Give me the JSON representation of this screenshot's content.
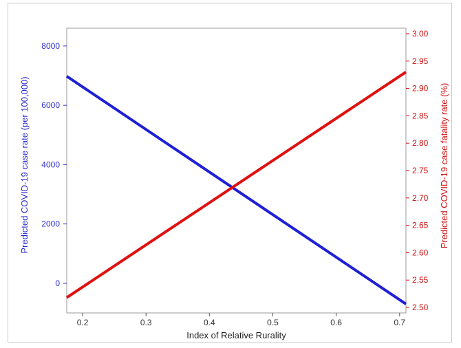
{
  "chart_data": {
    "type": "line",
    "xlabel": "Index of Relative Rurality",
    "ylabel_left": "Predicted COVID-19 case rate (per 100,000)",
    "ylabel_right": "Predicted COVID-19 case fatality rate (%)",
    "xlim": [
      0.175,
      0.71
    ],
    "ylim_left": [
      -1000,
      8600
    ],
    "ylim_right": [
      2.49,
      3.01
    ],
    "x_ticks": [
      0.2,
      0.3,
      0.4,
      0.5,
      0.6,
      0.7
    ],
    "x_tick_labels": [
      "0.2",
      "0.3",
      "0.4",
      "0.5",
      "0.6",
      "0.7"
    ],
    "y_left_ticks": [
      0,
      2000,
      4000,
      6000,
      8000
    ],
    "y_left_tick_labels": [
      "0",
      "2000",
      "4000",
      "6000",
      "8000"
    ],
    "y_right_ticks": [
      2.5,
      2.55,
      2.6,
      2.65,
      2.7,
      2.75,
      2.8,
      2.85,
      2.9,
      2.95,
      3.0
    ],
    "y_right_tick_labels": [
      "2.50",
      "2.55",
      "2.60",
      "2.65",
      "2.70",
      "2.75",
      "2.80",
      "2.85",
      "2.90",
      "2.95",
      "3.00"
    ],
    "grid": false,
    "series": [
      {
        "axis": "left",
        "color": "#1f1fd6",
        "x": [
          0.175,
          0.71
        ],
        "y": [
          6980,
          -700
        ]
      },
      {
        "axis": "right",
        "color": "#e01010",
        "x": [
          0.175,
          0.71
        ],
        "y": [
          2.518,
          2.93
        ]
      }
    ]
  }
}
